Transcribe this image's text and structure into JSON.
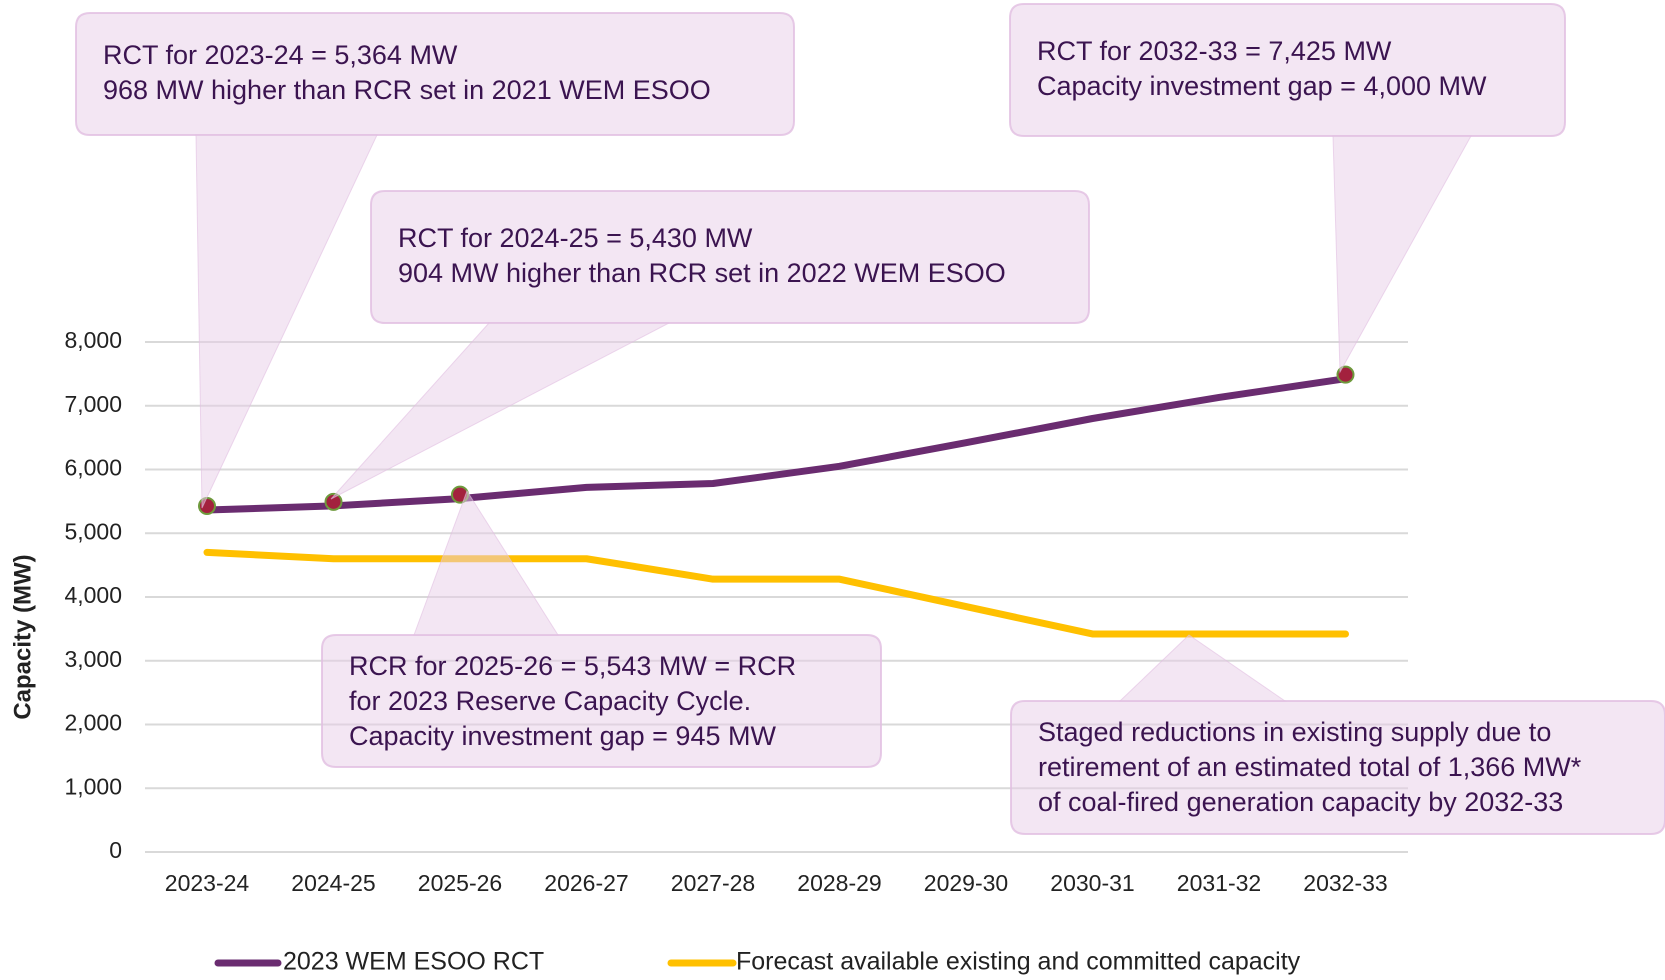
{
  "chart_data": {
    "type": "line",
    "y_label": "Capacity (MW)",
    "categories": [
      "2023-24",
      "2024-25",
      "2025-26",
      "2026-27",
      "2027-28",
      "2028-29",
      "2029-30",
      "2030-31",
      "2031-32",
      "2032-33"
    ],
    "series": [
      {
        "name": "2023 WEM ESOO RCT",
        "color": "#6a2c70",
        "values": [
          5364,
          5430,
          5543,
          5720,
          5780,
          6050,
          6420,
          6800,
          7130,
          7425
        ],
        "markers": [
          0,
          1,
          2,
          9
        ],
        "marker_color": "#a3213e"
      },
      {
        "name": "Forecast available existing and committed capacity",
        "color": "#ffc000",
        "values": [
          4700,
          4600,
          4600,
          4600,
          4280,
          4280,
          3850,
          3420,
          3420,
          3420
        ]
      }
    ],
    "ylim": [
      0,
      8000
    ],
    "yticks": [
      0,
      {
        "value": 1000,
        "label": "1,000"
      },
      {
        "value": 2000,
        "label": "2,000"
      },
      {
        "value": 3000,
        "label": "3,000"
      },
      {
        "value": 4000,
        "label": "4,000"
      },
      {
        "value": 5000,
        "label": "5,000"
      },
      {
        "value": 6000,
        "label": "6,000"
      },
      {
        "value": 7000,
        "label": "7,000"
      },
      {
        "value": 8000,
        "label": "8,000"
      }
    ],
    "grid": true,
    "legend": "bottom",
    "annotations": [
      {
        "lines": [
          "RCT for 2023-24 = 5,364 MW",
          "968 MW higher than RCR set in 2021 WEM ESOO"
        ]
      },
      {
        "lines": [
          "RCT for 2024-25 = 5,430 MW",
          "904 MW higher than RCR set in 2022 WEM ESOO"
        ]
      },
      {
        "lines": [
          "RCT for 2032-33 = 7,425 MW",
          "Capacity investment gap = 4,000 MW"
        ]
      },
      {
        "lines": [
          "RCR for 2025-26 = 5,543 MW = RCR",
          "for 2023 Reserve Capacity Cycle.",
          "Capacity investment gap = 945 MW"
        ]
      },
      {
        "lines": [
          "Staged reductions in existing supply due to",
          "retirement of an estimated total of 1,366 MW*",
          "of coal-fired generation capacity by 2032-33"
        ]
      }
    ]
  }
}
